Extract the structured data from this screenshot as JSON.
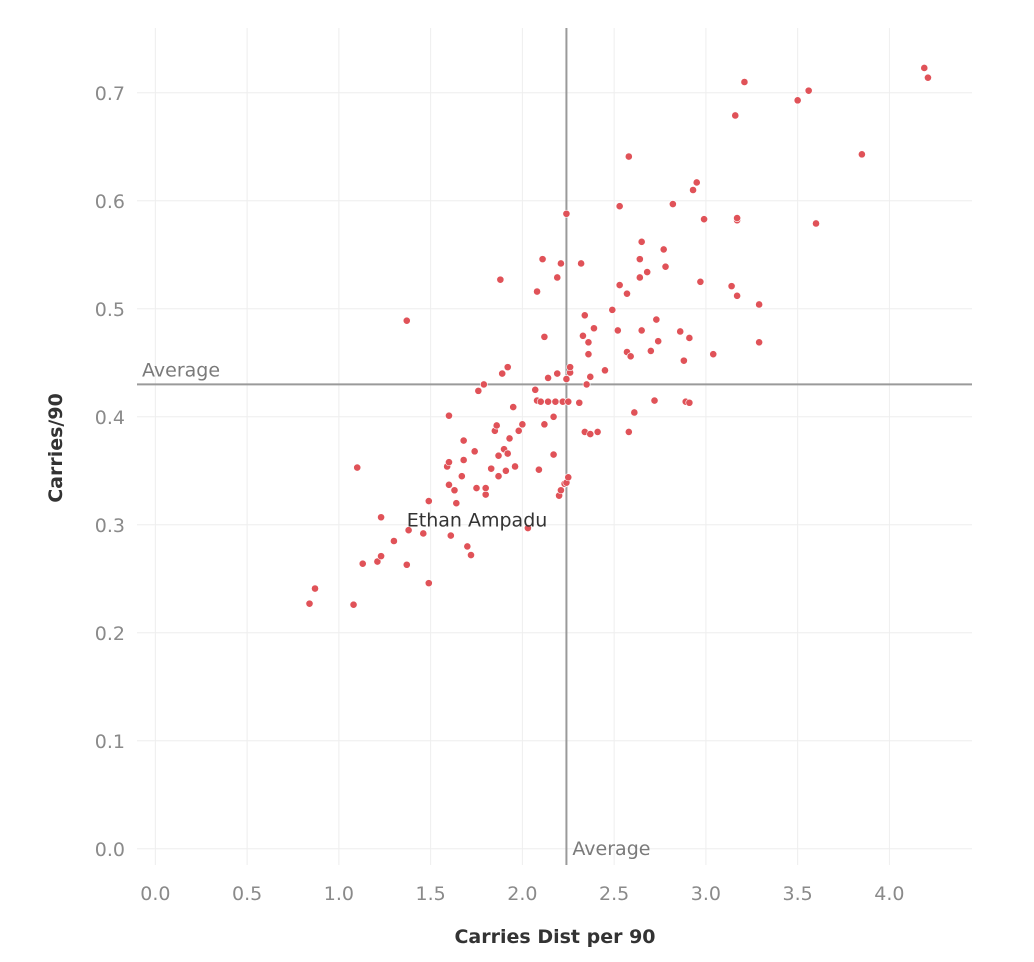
{
  "chart_data": {
    "type": "scatter",
    "title": "",
    "xlabel": "Carries Dist per 90",
    "ylabel": "Carries/90",
    "xlim": [
      -0.1,
      4.45
    ],
    "ylim": [
      -0.015,
      0.76
    ],
    "x_ticks": [
      "0.0",
      "0.5",
      "1.0",
      "1.5",
      "2.0",
      "2.5",
      "3.0",
      "3.5",
      "4.0"
    ],
    "y_ticks": [
      "0.0",
      "0.1",
      "0.2",
      "0.3",
      "0.4",
      "0.5",
      "0.6",
      "0.7"
    ],
    "grid": true,
    "point_color": "#e05258",
    "reference_lines": [
      {
        "axis": "x",
        "value": 2.24,
        "label": "Average"
      },
      {
        "axis": "y",
        "value": 0.43,
        "label": "Average"
      }
    ],
    "annotations": [
      {
        "text": "Ethan Ampadu",
        "x": 1.37,
        "y": 0.305
      }
    ],
    "points": [
      [
        0.84,
        0.227
      ],
      [
        0.87,
        0.241
      ],
      [
        1.08,
        0.226
      ],
      [
        1.1,
        0.353
      ],
      [
        1.13,
        0.264
      ],
      [
        1.21,
        0.266
      ],
      [
        1.23,
        0.271
      ],
      [
        1.23,
        0.307
      ],
      [
        1.3,
        0.285
      ],
      [
        1.37,
        0.489
      ],
      [
        1.37,
        0.263
      ],
      [
        1.38,
        0.295
      ],
      [
        1.46,
        0.292
      ],
      [
        1.49,
        0.246
      ],
      [
        1.49,
        0.322
      ],
      [
        1.59,
        0.354
      ],
      [
        1.6,
        0.358
      ],
      [
        1.6,
        0.337
      ],
      [
        1.6,
        0.401
      ],
      [
        1.61,
        0.29
      ],
      [
        1.63,
        0.332
      ],
      [
        1.64,
        0.32
      ],
      [
        1.67,
        0.345
      ],
      [
        1.68,
        0.378
      ],
      [
        1.68,
        0.36
      ],
      [
        1.7,
        0.28
      ],
      [
        1.72,
        0.272
      ],
      [
        1.74,
        0.368
      ],
      [
        1.75,
        0.334
      ],
      [
        1.76,
        0.424
      ],
      [
        1.79,
        0.43
      ],
      [
        1.8,
        0.328
      ],
      [
        1.8,
        0.334
      ],
      [
        1.83,
        0.352
      ],
      [
        1.85,
        0.387
      ],
      [
        1.86,
        0.392
      ],
      [
        1.87,
        0.345
      ],
      [
        1.87,
        0.364
      ],
      [
        1.88,
        0.527
      ],
      [
        1.89,
        0.44
      ],
      [
        1.9,
        0.37
      ],
      [
        1.91,
        0.35
      ],
      [
        1.92,
        0.446
      ],
      [
        1.92,
        0.366
      ],
      [
        1.93,
        0.38
      ],
      [
        1.95,
        0.409
      ],
      [
        1.96,
        0.354
      ],
      [
        1.98,
        0.387
      ],
      [
        2.0,
        0.393
      ],
      [
        2.03,
        0.297
      ],
      [
        2.07,
        0.425
      ],
      [
        2.08,
        0.516
      ],
      [
        2.08,
        0.415
      ],
      [
        2.09,
        0.351
      ],
      [
        2.1,
        0.414
      ],
      [
        2.11,
        0.546
      ],
      [
        2.12,
        0.393
      ],
      [
        2.12,
        0.474
      ],
      [
        2.14,
        0.414
      ],
      [
        2.14,
        0.436
      ],
      [
        2.17,
        0.4
      ],
      [
        2.17,
        0.365
      ],
      [
        2.18,
        0.414
      ],
      [
        2.19,
        0.529
      ],
      [
        2.19,
        0.44
      ],
      [
        2.2,
        0.327
      ],
      [
        2.21,
        0.332
      ],
      [
        2.21,
        0.542
      ],
      [
        2.22,
        0.414
      ],
      [
        2.23,
        0.338
      ],
      [
        2.24,
        0.588
      ],
      [
        2.24,
        0.435
      ],
      [
        2.24,
        0.339
      ],
      [
        2.25,
        0.344
      ],
      [
        2.25,
        0.414
      ],
      [
        2.26,
        0.441
      ],
      [
        2.26,
        0.446
      ],
      [
        2.31,
        0.413
      ],
      [
        2.32,
        0.542
      ],
      [
        2.33,
        0.475
      ],
      [
        2.34,
        0.494
      ],
      [
        2.34,
        0.386
      ],
      [
        2.35,
        0.43
      ],
      [
        2.36,
        0.469
      ],
      [
        2.36,
        0.458
      ],
      [
        2.37,
        0.437
      ],
      [
        2.37,
        0.384
      ],
      [
        2.39,
        0.482
      ],
      [
        2.41,
        0.386
      ],
      [
        2.45,
        0.443
      ],
      [
        2.49,
        0.499
      ],
      [
        2.52,
        0.48
      ],
      [
        2.53,
        0.595
      ],
      [
        2.53,
        0.522
      ],
      [
        2.57,
        0.514
      ],
      [
        2.57,
        0.46
      ],
      [
        2.58,
        0.641
      ],
      [
        2.58,
        0.386
      ],
      [
        2.59,
        0.456
      ],
      [
        2.61,
        0.404
      ],
      [
        2.64,
        0.546
      ],
      [
        2.64,
        0.529
      ],
      [
        2.65,
        0.48
      ],
      [
        2.65,
        0.562
      ],
      [
        2.68,
        0.534
      ],
      [
        2.7,
        0.461
      ],
      [
        2.72,
        0.415
      ],
      [
        2.73,
        0.49
      ],
      [
        2.74,
        0.47
      ],
      [
        2.77,
        0.555
      ],
      [
        2.78,
        0.539
      ],
      [
        2.82,
        0.597
      ],
      [
        2.86,
        0.479
      ],
      [
        2.88,
        0.452
      ],
      [
        2.89,
        0.414
      ],
      [
        2.91,
        0.473
      ],
      [
        2.91,
        0.413
      ],
      [
        2.93,
        0.61
      ],
      [
        2.95,
        0.617
      ],
      [
        2.97,
        0.525
      ],
      [
        2.99,
        0.583
      ],
      [
        3.04,
        0.458
      ],
      [
        3.14,
        0.521
      ],
      [
        3.16,
        0.679
      ],
      [
        3.17,
        0.512
      ],
      [
        3.17,
        0.582
      ],
      [
        3.17,
        0.584
      ],
      [
        3.21,
        0.71
      ],
      [
        3.29,
        0.504
      ],
      [
        3.29,
        0.469
      ],
      [
        3.5,
        0.693
      ],
      [
        3.56,
        0.702
      ],
      [
        3.6,
        0.579
      ],
      [
        3.85,
        0.643
      ],
      [
        4.19,
        0.723
      ],
      [
        4.21,
        0.714
      ]
    ]
  }
}
